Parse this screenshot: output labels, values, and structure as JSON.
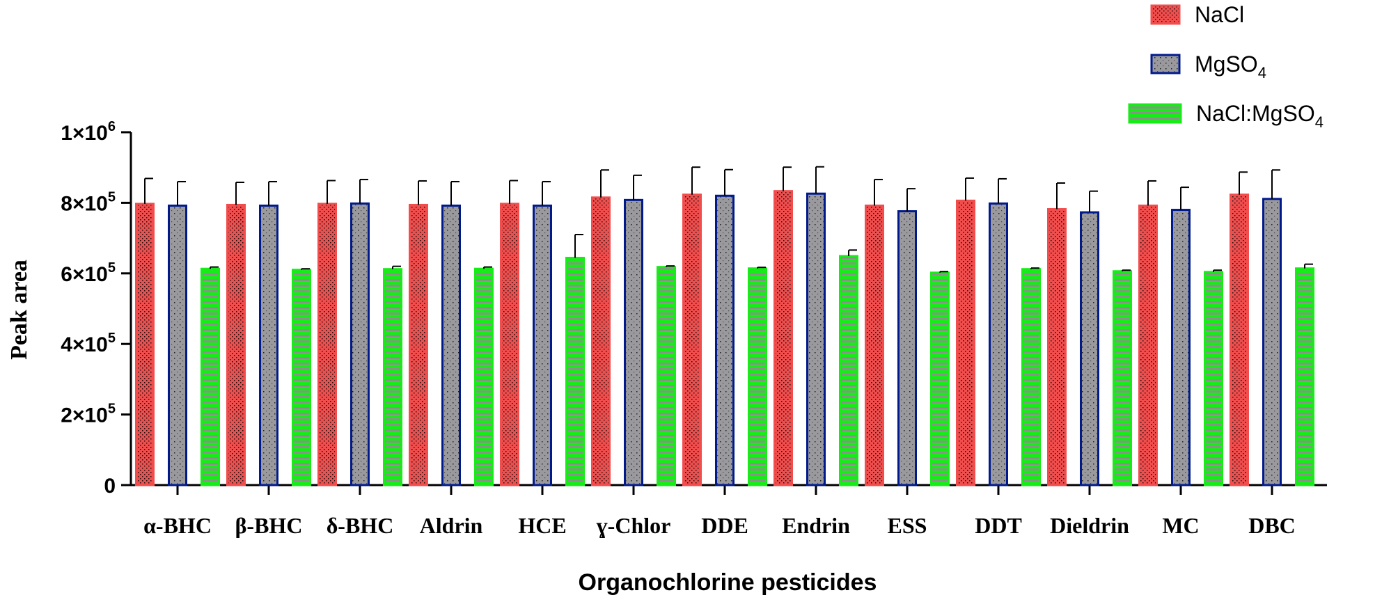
{
  "chart_data": {
    "type": "bar",
    "title": "",
    "xlabel": "Organochlorine pesticides",
    "ylabel": "Peak area",
    "ylim": [
      0,
      1000000
    ],
    "yticks": [
      {
        "value": 0,
        "base": "0",
        "exp": ""
      },
      {
        "value": 200000,
        "base": "2×10",
        "exp": "5"
      },
      {
        "value": 400000,
        "base": "4×10",
        "exp": "5"
      },
      {
        "value": 600000,
        "base": "6×10",
        "exp": "5"
      },
      {
        "value": 800000,
        "base": "8×10",
        "exp": "5"
      },
      {
        "value": 1000000,
        "base": "1×10",
        "exp": "6"
      }
    ],
    "categories": [
      "α-BHC",
      "β-BHC",
      "δ-BHC",
      "Aldrin",
      "HCE",
      "ɣ-Chlor",
      "DDE",
      "Endrin",
      "ESS",
      "DDT",
      "Dieldrin",
      "MC",
      "DBC"
    ],
    "series": [
      {
        "name": "NaCl",
        "name_base": "NaCl",
        "name_sub": "",
        "color": "#f24d4d",
        "values": [
          797000,
          794000,
          797000,
          794000,
          797000,
          815000,
          823000,
          833000,
          792000,
          806000,
          782000,
          792000,
          823000
        ],
        "errors": [
          72000,
          64000,
          66000,
          68000,
          66000,
          78000,
          78000,
          68000,
          74000,
          64000,
          74000,
          70000,
          64000
        ]
      },
      {
        "name": "MgSO4",
        "name_base": "MgSO",
        "name_sub": "4",
        "color": "#001a8c",
        "values": [
          792000,
          792000,
          798000,
          792000,
          792000,
          808000,
          820000,
          826000,
          776000,
          798000,
          773000,
          780000,
          811000
        ],
        "errors": [
          68000,
          68000,
          68000,
          68000,
          68000,
          70000,
          74000,
          76000,
          64000,
          70000,
          60000,
          64000,
          82000
        ]
      },
      {
        "name": "NaCl:MgSO4",
        "name_base": "NaCl:MgSO",
        "name_sub": "4",
        "color": "#18ec18",
        "values": [
          613000,
          610000,
          612000,
          613000,
          644000,
          618000,
          614000,
          649000,
          602000,
          612000,
          606000,
          604000,
          614000
        ],
        "errors": [
          5000,
          3000,
          8000,
          5000,
          66000,
          3000,
          3000,
          17000,
          3000,
          3000,
          3000,
          5000,
          12000
        ]
      }
    ],
    "legend_position": "top-right",
    "grid": false
  }
}
